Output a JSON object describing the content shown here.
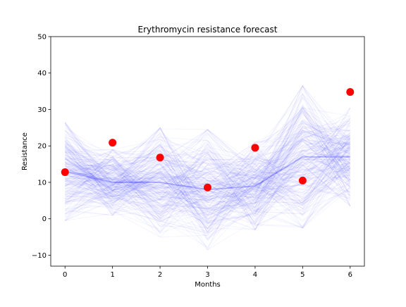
{
  "chart_data": {
    "type": "line",
    "title": "Erythromycin resistance forecast",
    "xlabel": "Months",
    "ylabel": "Resistance",
    "xlim": [
      -0.3,
      6.3
    ],
    "ylim": [
      -13,
      50
    ],
    "x_ticks": [
      0,
      1,
      2,
      3,
      4,
      5,
      6
    ],
    "y_ticks": [
      -10,
      0,
      10,
      20,
      30,
      40,
      50
    ],
    "grid": false,
    "legend": "none",
    "x": [
      0,
      1,
      2,
      3,
      4,
      5,
      6
    ],
    "observed": {
      "values": [
        12.8,
        20.9,
        16.8,
        8.6,
        19.5,
        10.5,
        34.8
      ],
      "color": "#ff0000",
      "marker": "circle"
    },
    "forecast_band": {
      "color": "#0000ff",
      "median": [
        13,
        10,
        10,
        8,
        9,
        17,
        17
      ],
      "lower": [
        0,
        6,
        0,
        -3,
        2,
        6,
        6
      ],
      "upper": [
        27,
        24,
        30,
        30,
        26,
        45,
        33
      ]
    }
  }
}
